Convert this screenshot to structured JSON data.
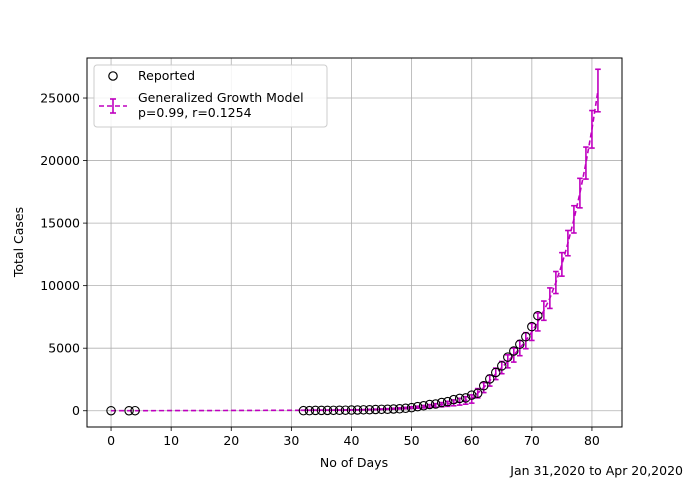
{
  "chart_data": {
    "type": "scatter",
    "xlabel": "No of Days",
    "ylabel": "Total Cases",
    "xlim": [
      -4,
      85
    ],
    "ylim": [
      -1300,
      28200
    ],
    "xticks": [
      0,
      10,
      20,
      30,
      40,
      50,
      60,
      70,
      80
    ],
    "yticks": [
      0,
      5000,
      10000,
      15000,
      20000,
      25000
    ],
    "grid": true,
    "legend_position": "top-left",
    "note": "Jan 31,2020 to Apr 20,2020",
    "colors": {
      "reported": "#000000",
      "model": "#bf00bf",
      "grid": "#b0b0b0"
    },
    "series": [
      {
        "name": "Reported",
        "marker": "open-circle",
        "x": [
          0,
          3,
          4,
          32,
          33,
          34,
          35,
          36,
          37,
          38,
          39,
          40,
          41,
          42,
          43,
          44,
          45,
          46,
          47,
          48,
          49,
          50,
          51,
          52,
          53,
          54,
          55,
          56,
          57,
          58,
          59,
          60,
          61,
          62,
          63,
          64,
          65,
          66,
          67,
          68,
          69,
          70,
          71
        ],
        "y": [
          1,
          2,
          3,
          5,
          6,
          28,
          30,
          31,
          34,
          39,
          43,
          56,
          62,
          73,
          82,
          102,
          113,
          119,
          142,
          156,
          194,
          244,
          330,
          396,
          499,
          536,
          657,
          727,
          887,
          987,
          1024,
          1251,
          1397,
          1998,
          2543,
          3059,
          3588,
          4289,
          4778,
          5311,
          5916,
          6725,
          7598
        ]
      },
      {
        "name": "Generalized Growth Model\np=0.99, r=0.1254",
        "style": "dashed-with-errorbars",
        "x": [
          0,
          1,
          2,
          3,
          4,
          5,
          6,
          7,
          8,
          9,
          10,
          11,
          12,
          13,
          14,
          15,
          16,
          17,
          18,
          19,
          20,
          21,
          22,
          23,
          24,
          25,
          26,
          27,
          28,
          29,
          30,
          31,
          32,
          33,
          34,
          35,
          36,
          37,
          38,
          39,
          40,
          41,
          42,
          43,
          44,
          45,
          46,
          47,
          48,
          49,
          50,
          51,
          52,
          53,
          54,
          55,
          56,
          57,
          58,
          59,
          60,
          61,
          62,
          63,
          64,
          65,
          66,
          67,
          68,
          69,
          70,
          71,
          72,
          73,
          74,
          75,
          76,
          77,
          78,
          79,
          80,
          81
        ],
        "y": [
          1,
          2,
          3,
          4,
          5,
          6,
          7,
          8,
          9,
          10,
          11,
          12,
          13,
          14,
          15,
          16,
          17,
          18,
          19,
          20,
          21,
          23,
          25,
          27,
          28,
          29,
          30,
          31,
          33,
          35,
          36,
          37,
          38,
          40,
          42,
          44,
          46,
          48,
          50,
          55,
          62,
          70,
          80,
          92,
          106,
          121,
          140,
          162,
          186,
          214,
          246,
          282,
          323,
          370,
          423,
          483,
          552,
          631,
          720,
          822,
          938,
          1400,
          1850,
          2400,
          2950,
          3450,
          3950,
          4450,
          5000,
          5600,
          6300,
          7100,
          8000,
          9000,
          10250,
          11700,
          13400,
          15300,
          17400,
          19800,
          22500,
          25600
        ],
        "err": [
          0,
          0,
          0,
          0,
          0,
          0,
          0,
          0,
          0,
          0,
          0,
          0,
          0,
          0,
          0,
          0,
          0,
          0,
          0,
          0,
          0,
          0,
          0,
          0,
          0,
          0,
          0,
          0,
          0,
          0,
          0,
          0,
          5,
          5,
          6,
          6,
          7,
          7,
          8,
          9,
          10,
          12,
          14,
          17,
          20,
          25,
          30,
          38,
          46,
          56,
          68,
          82,
          99,
          119,
          142,
          170,
          200,
          235,
          270,
          300,
          330,
          370,
          400,
          430,
          460,
          490,
          520,
          560,
          600,
          640,
          680,
          720,
          770,
          820,
          880,
          940,
          1010,
          1090,
          1180,
          1280,
          1500,
          1700
        ]
      }
    ]
  }
}
